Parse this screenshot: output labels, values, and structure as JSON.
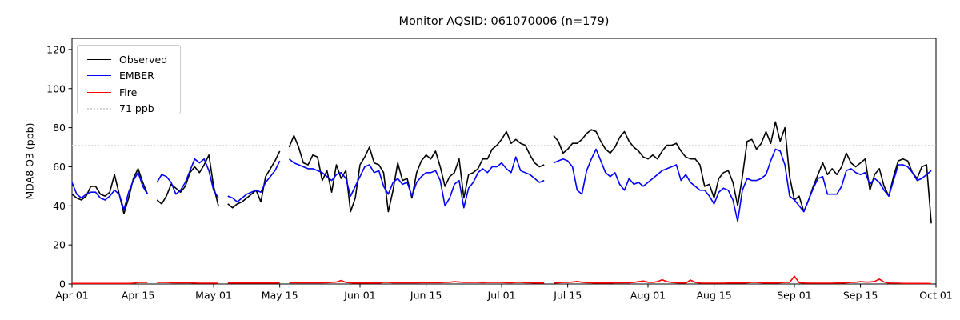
{
  "chart_data": {
    "type": "line",
    "title": "Monitor AQSID: 061070006 (n=179)",
    "xlabel": "",
    "ylabel": "MDA8 O3 (ppb)",
    "ylim": [
      0,
      125.7
    ],
    "yticks": [
      0,
      20,
      40,
      60,
      80,
      100,
      120
    ],
    "x_range_days": [
      0,
      183
    ],
    "x_start_date": "Apr 01",
    "x_end_date": "Oct 01",
    "xticks": [
      {
        "day": 0,
        "label": "Apr 01"
      },
      {
        "day": 14,
        "label": "Apr 15"
      },
      {
        "day": 30,
        "label": "May 01"
      },
      {
        "day": 44,
        "label": "May 15"
      },
      {
        "day": 61,
        "label": "Jun 01"
      },
      {
        "day": 75,
        "label": "Jun 15"
      },
      {
        "day": 91,
        "label": "Jul 01"
      },
      {
        "day": 105,
        "label": "Jul 15"
      },
      {
        "day": 122,
        "label": "Aug 01"
      },
      {
        "day": 136,
        "label": "Aug 15"
      },
      {
        "day": 153,
        "label": "Sep 01"
      },
      {
        "day": 167,
        "label": "Sep 15"
      },
      {
        "day": 183,
        "label": "Oct 01"
      }
    ],
    "grid": false,
    "legend_position": "upper left",
    "reference_line": {
      "label": "71 ppb",
      "value": 71,
      "color": "#d3d3d3",
      "style": "dotted"
    },
    "legend_items": [
      {
        "label": "Observed",
        "color": "#000000",
        "style": "solid"
      },
      {
        "label": "EMBER",
        "color": "#0000ff",
        "style": "solid"
      },
      {
        "label": "Fire",
        "color": "#ff0000",
        "style": "solid"
      },
      {
        "label": "71 ppb",
        "color": "#d3d3d3",
        "style": "dotted"
      }
    ],
    "series": [
      {
        "name": "Observed",
        "color": "#000000",
        "values": [
          46,
          44,
          43,
          45,
          50,
          50,
          46,
          45,
          47,
          56,
          46,
          36,
          44,
          54,
          59,
          52,
          46,
          null,
          43,
          41,
          45,
          51,
          49,
          47,
          50,
          57,
          60,
          57,
          61,
          66,
          50,
          40,
          null,
          41,
          39,
          41,
          42,
          44,
          46,
          48,
          42,
          55,
          59,
          63,
          68,
          null,
          70,
          76,
          70,
          62,
          61,
          66,
          65,
          53,
          58,
          47,
          61,
          54,
          58,
          37,
          44,
          61,
          65,
          70,
          62,
          61,
          57,
          37,
          48,
          62,
          53,
          54,
          44,
          57,
          63,
          66,
          64,
          68,
          60,
          50,
          55,
          57,
          64,
          44,
          56,
          57,
          59,
          64,
          64,
          69,
          71,
          74,
          78,
          72,
          74,
          72,
          71,
          66,
          62,
          60,
          61,
          null,
          76,
          73,
          67,
          69,
          72,
          72,
          74,
          77,
          79,
          78,
          73,
          69,
          67,
          70,
          75,
          78,
          73,
          70,
          68,
          65,
          64,
          66,
          64,
          68,
          71,
          71,
          72,
          68,
          65,
          64,
          64,
          61,
          50,
          51,
          44,
          54,
          57,
          58,
          52,
          40,
          55,
          73,
          74,
          69,
          72,
          78,
          72,
          83,
          73,
          80,
          55,
          43,
          45,
          37,
          43,
          50,
          56,
          62,
          56,
          59,
          56,
          60,
          67,
          62,
          60,
          62,
          64,
          48,
          56,
          59,
          50,
          45,
          55,
          63,
          64,
          63,
          57,
          54,
          60,
          61,
          31
        ]
      },
      {
        "name": "EMBER",
        "color": "#0000ff",
        "values": [
          52,
          46,
          44,
          46,
          47,
          47,
          44,
          43,
          45,
          48,
          46,
          38,
          47,
          53,
          57,
          50,
          46,
          null,
          52,
          56,
          55,
          52,
          46,
          48,
          52,
          58,
          64,
          62,
          64,
          58,
          48,
          44,
          null,
          45,
          44,
          42,
          44,
          46,
          47,
          48,
          47,
          52,
          55,
          58,
          63,
          null,
          64,
          62,
          61,
          60,
          59,
          59,
          58,
          57,
          55,
          53,
          56,
          57,
          54,
          45,
          50,
          55,
          60,
          61,
          57,
          58,
          50,
          46,
          52,
          54,
          51,
          52,
          45,
          52,
          55,
          57,
          57,
          58,
          53,
          40,
          44,
          51,
          53,
          39,
          49,
          52,
          57,
          59,
          57,
          60,
          60,
          62,
          59,
          57,
          65,
          58,
          57,
          56,
          54,
          52,
          53,
          null,
          62,
          63,
          64,
          63,
          60,
          48,
          46,
          58,
          64,
          69,
          63,
          57,
          55,
          57,
          51,
          48,
          54,
          51,
          52,
          50,
          52,
          54,
          56,
          58,
          59,
          60,
          61,
          53,
          56,
          52,
          50,
          48,
          48,
          45,
          41,
          47,
          49,
          48,
          43,
          32,
          48,
          54,
          53,
          53,
          54,
          56,
          63,
          69,
          68,
          61,
          45,
          43,
          40,
          37,
          43,
          49,
          54,
          55,
          46,
          46,
          46,
          50,
          58,
          59,
          57,
          56,
          57,
          51,
          54,
          52,
          48,
          45,
          53,
          61,
          61,
          60,
          57,
          53,
          54,
          56,
          58
        ]
      },
      {
        "name": "Fire",
        "color": "#ff0000",
        "values": [
          0.3,
          0.3,
          0.3,
          0.3,
          0.3,
          0.3,
          0.3,
          0.3,
          0.3,
          0.3,
          0.3,
          0.3,
          0.3,
          0.4,
          0.8,
          0.8,
          0.8,
          null,
          0.8,
          0.9,
          0.8,
          0.7,
          0.6,
          0.6,
          0.7,
          0.6,
          0.5,
          0.4,
          0.4,
          0.4,
          0.4,
          0.4,
          null,
          0.5,
          0.5,
          0.5,
          0.5,
          0.5,
          0.5,
          0.5,
          0.5,
          0.5,
          0.5,
          0.5,
          0.6,
          null,
          0.6,
          0.6,
          0.6,
          0.6,
          0.6,
          0.6,
          0.6,
          0.6,
          0.7,
          0.8,
          1.0,
          1.8,
          0.8,
          0.6,
          0.5,
          0.5,
          0.5,
          0.5,
          0.5,
          0.5,
          0.8,
          0.8,
          0.6,
          0.6,
          0.6,
          0.6,
          0.6,
          0.6,
          0.7,
          0.7,
          0.7,
          0.7,
          0.7,
          0.8,
          0.9,
          1.2,
          1.0,
          0.8,
          0.8,
          0.8,
          0.8,
          0.7,
          0.8,
          0.9,
          0.8,
          0.8,
          0.7,
          0.6,
          0.8,
          0.8,
          0.7,
          0.6,
          0.5,
          0.5,
          0.5,
          null,
          0.5,
          0.6,
          0.8,
          0.8,
          1.0,
          1.3,
          0.9,
          0.7,
          0.6,
          0.5,
          0.5,
          0.5,
          0.5,
          0.6,
          0.6,
          0.6,
          0.6,
          0.8,
          1.2,
          1.5,
          0.9,
          0.8,
          1.2,
          2.2,
          1.2,
          0.8,
          0.6,
          0.5,
          0.5,
          2.0,
          0.8,
          0.5,
          0.4,
          0.4,
          0.4,
          0.4,
          0.4,
          0.5,
          0.5,
          0.5,
          0.5,
          0.6,
          0.8,
          0.8,
          0.6,
          0.5,
          0.5,
          0.5,
          0.6,
          0.8,
          0.8,
          4.0,
          0.7,
          0.5,
          0.4,
          0.4,
          0.4,
          0.4,
          0.4,
          0.4,
          0.5,
          0.5,
          0.6,
          0.8,
          0.9,
          1.2,
          1.0,
          1.0,
          1.3,
          2.5,
          1.0,
          0.5,
          0.4,
          0.4,
          0.3,
          0.3,
          0.3,
          0.3,
          0.3,
          0.3,
          0.2
        ]
      }
    ]
  }
}
